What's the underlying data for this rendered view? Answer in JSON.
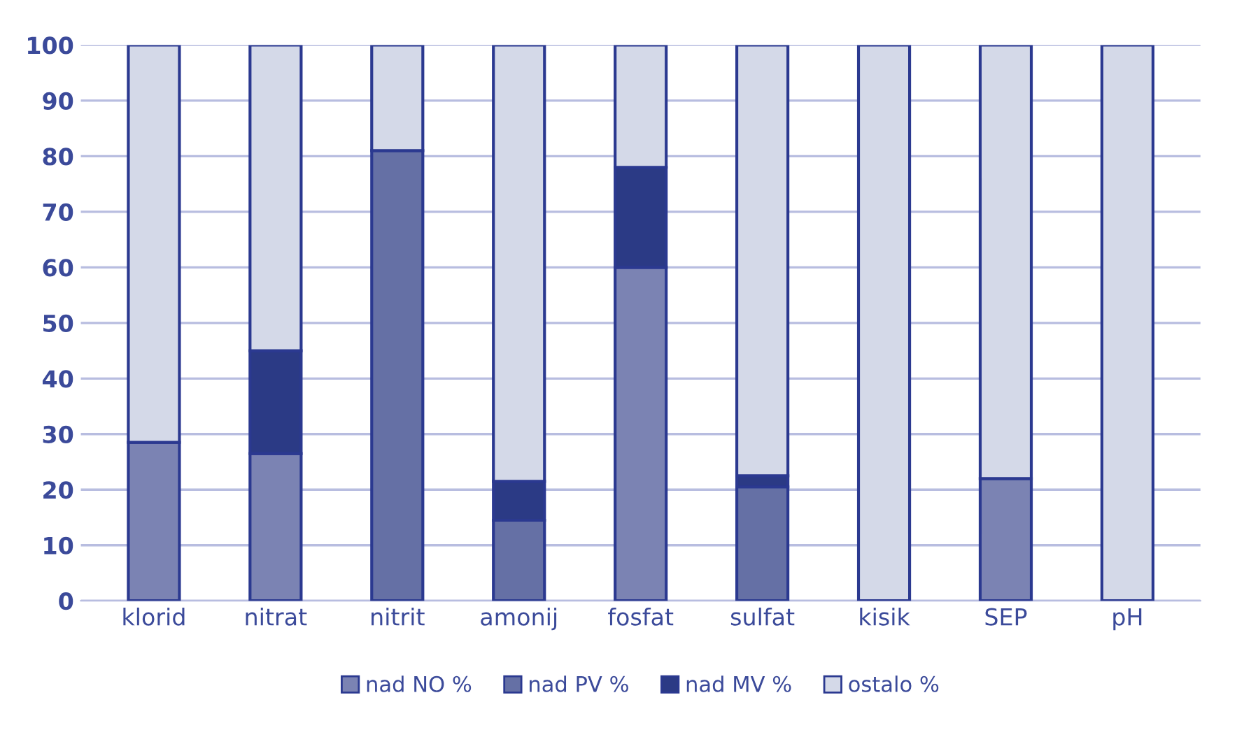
{
  "chart_data": {
    "type": "bar",
    "stacked": true,
    "categories": [
      "klorid",
      "nitrat",
      "nitrit",
      "amonij",
      "fosfat",
      "sulfat",
      "kisik",
      "SEP",
      "pH"
    ],
    "series": [
      {
        "name": "nad NO %",
        "color": "#7b83b3",
        "values": [
          28.5,
          26.5,
          0,
          0,
          60,
          0,
          0,
          22,
          0
        ]
      },
      {
        "name": "nad PV %",
        "color": "#6570a5",
        "values": [
          0,
          0,
          81,
          14.5,
          0,
          20.5,
          0,
          0,
          0
        ]
      },
      {
        "name": "nad MV %",
        "color": "#2b3a85",
        "values": [
          0,
          18.5,
          0,
          7,
          18,
          2,
          0,
          0,
          0
        ]
      },
      {
        "name": "ostalo %",
        "color": "#d4d9e8",
        "values": [
          71.5,
          55,
          19,
          78.5,
          22,
          77.5,
          100,
          78,
          100
        ]
      }
    ],
    "ylim": [
      0,
      100
    ],
    "yticks": [
      0,
      10,
      20,
      30,
      40,
      50,
      60,
      70,
      80,
      90,
      100
    ],
    "grid": "y",
    "legend": "bottom"
  }
}
